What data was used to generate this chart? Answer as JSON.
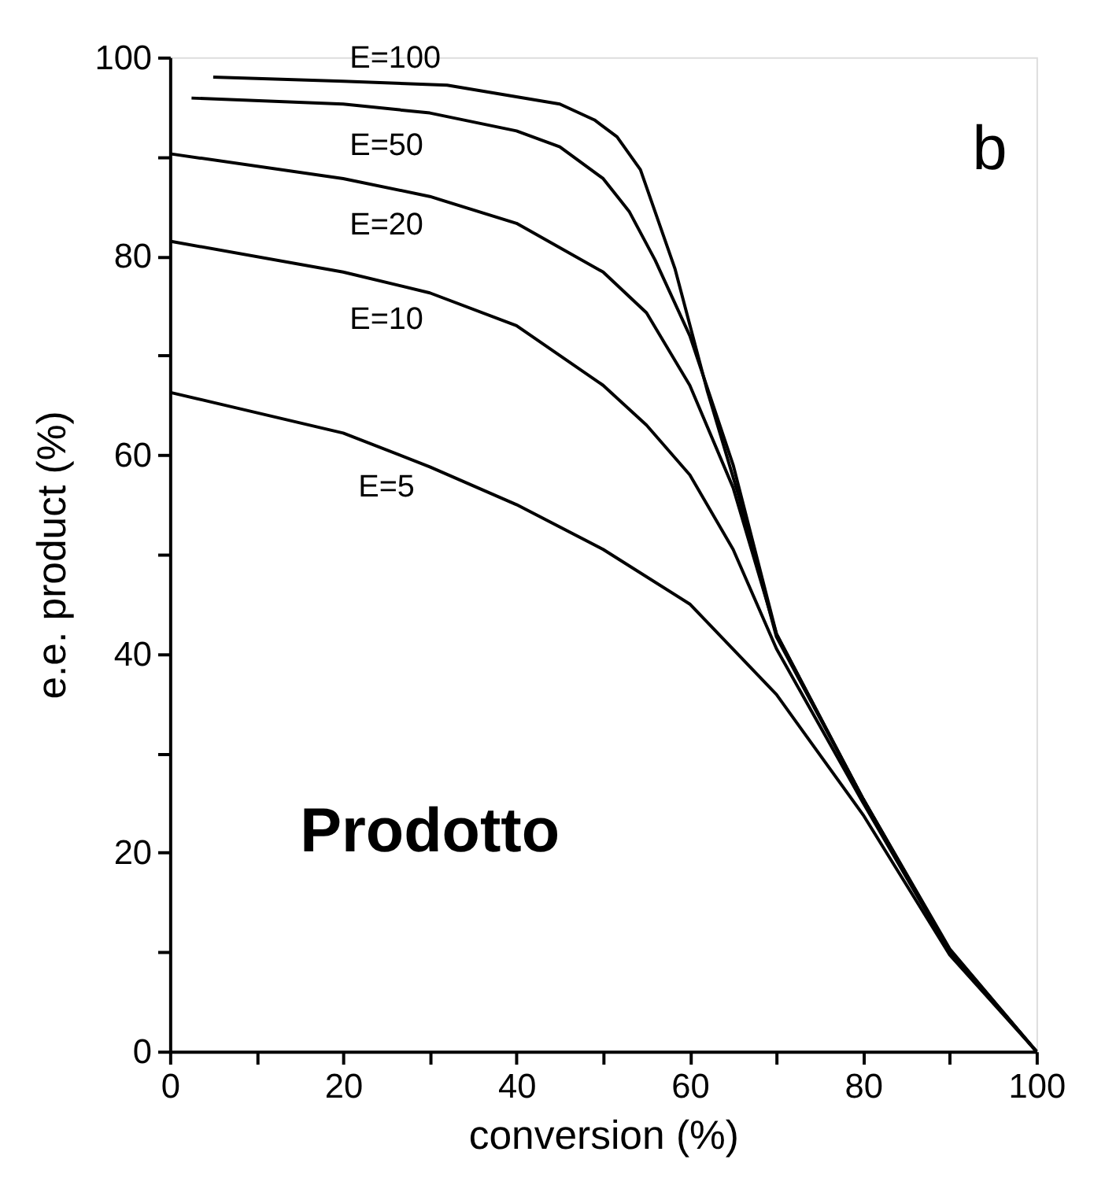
{
  "chart_data": {
    "type": "line",
    "xlabel": "conversion (%)",
    "ylabel": "e.e. product (%)",
    "xlim": [
      0,
      100
    ],
    "ylim": [
      0,
      100
    ],
    "xticks": [
      0,
      {
        "value": 10,
        "label": null
      },
      20,
      {
        "value": 30,
        "label": null
      },
      40,
      {
        "value": 50,
        "label": null
      },
      60,
      {
        "value": 70,
        "label": null
      },
      80,
      {
        "value": 90,
        "label": null
      },
      100
    ],
    "yticks": [
      0,
      {
        "value": 10,
        "label": null
      },
      20,
      {
        "value": 30,
        "label": null
      },
      40,
      {
        "value": 50,
        "label": null
      },
      60,
      {
        "value": 70,
        "label": null
      },
      80,
      {
        "value": 90,
        "label": null
      },
      100
    ],
    "grid": false,
    "legend": false,
    "marker": "none",
    "line_style": "solid",
    "series": [
      {
        "name": "E=100",
        "color": "#000000",
        "x": [
          5,
          20,
          32,
          45,
          49,
          51.6,
          54.3,
          58.3,
          62,
          65.6,
          70,
          80,
          90,
          100
        ],
        "values": [
          98,
          97.6,
          97.2,
          95.3,
          93.7,
          92,
          88.7,
          78.7,
          66.5,
          56,
          41.7,
          25.4,
          10.3,
          0
        ]
      },
      {
        "name": "E=50",
        "color": "#000000",
        "x": [
          2.5,
          20,
          30,
          40,
          45,
          50,
          53,
          56,
          60,
          65,
          70,
          80,
          90,
          100
        ],
        "values": [
          95.9,
          95.3,
          94.4,
          92.6,
          91,
          87.8,
          84.5,
          79.6,
          72,
          59,
          42,
          25.4,
          10.2,
          0
        ]
      },
      {
        "name": "E=20",
        "color": "#000000",
        "x": [
          0,
          20,
          30,
          40,
          50,
          55,
          60,
          65,
          70,
          80,
          90,
          100
        ],
        "values": [
          90.3,
          87.8,
          86,
          83.3,
          78.4,
          74.3,
          67,
          56.7,
          42,
          25.4,
          10.1,
          0
        ]
      },
      {
        "name": "E=10",
        "color": "#000000",
        "x": [
          0,
          20,
          30,
          40,
          50,
          55,
          60,
          65,
          70,
          80,
          90,
          100
        ],
        "values": [
          81.5,
          78.4,
          76.3,
          73,
          67,
          63,
          58,
          50.5,
          40.5,
          25,
          10,
          0
        ]
      },
      {
        "name": "E=5",
        "color": "#000000",
        "x": [
          0,
          20,
          30,
          40,
          50,
          60,
          70,
          80,
          90,
          100
        ],
        "values": [
          66.3,
          62.2,
          58.8,
          55,
          50.5,
          45,
          35.9,
          23.8,
          9.7,
          0
        ]
      }
    ],
    "annotations": [
      "b",
      "Prodotto"
    ]
  }
}
